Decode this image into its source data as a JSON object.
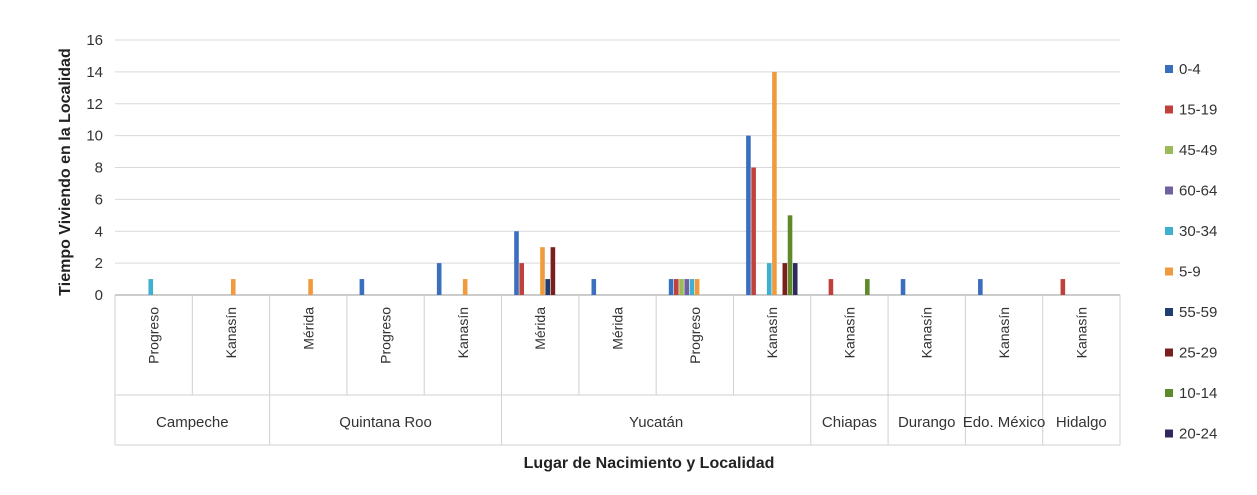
{
  "chart_data": {
    "type": "bar",
    "xlabel": "Lugar de Nacimiento y Localidad",
    "ylabel": "Tiempo Viviendo en la Localidad",
    "ylim": [
      0,
      16
    ],
    "yticks": [
      0,
      2,
      4,
      6,
      8,
      10,
      12,
      14,
      16
    ],
    "grid": true,
    "legend_position": "right",
    "groups": [
      {
        "name": "Campeche",
        "count": 2
      },
      {
        "name": "Quintana Roo",
        "count": 3
      },
      {
        "name": "Yucatán",
        "count": 4
      },
      {
        "name": "Chiapas",
        "count": 1
      },
      {
        "name": "Durango",
        "count": 1
      },
      {
        "name": "Edo. México",
        "count": 1
      },
      {
        "name": "Hidalgo",
        "count": 1
      }
    ],
    "categories": [
      "Progreso",
      "Kanasín",
      "Mérida",
      "Progreso",
      "Kanasín",
      "Mérida",
      "Mérida",
      "Progreso",
      "Kanasín",
      "Kanasín",
      "Kanasín",
      "Kanasín",
      "Kanasín"
    ],
    "series": [
      {
        "name": "0-4",
        "color": "#3a6fbf",
        "values": [
          0,
          0,
          0,
          1,
          2,
          4,
          1,
          1,
          10,
          0,
          1,
          1,
          0
        ]
      },
      {
        "name": "15-19",
        "color": "#c0403c",
        "values": [
          0,
          0,
          0,
          0,
          0,
          2,
          0,
          1,
          8,
          1,
          0,
          0,
          1
        ]
      },
      {
        "name": "45-49",
        "color": "#9bbb59",
        "values": [
          0,
          0,
          0,
          0,
          0,
          0,
          0,
          1,
          0,
          0,
          0,
          0,
          0
        ]
      },
      {
        "name": "60-64",
        "color": "#7060a0",
        "values": [
          0,
          0,
          0,
          0,
          0,
          0,
          0,
          1,
          0,
          0,
          0,
          0,
          0
        ]
      },
      {
        "name": "30-34",
        "color": "#3fb0cf",
        "values": [
          1,
          0,
          0,
          0,
          0,
          0,
          0,
          1,
          2,
          0,
          0,
          0,
          0
        ]
      },
      {
        "name": "5-9",
        "color": "#f09a3e",
        "values": [
          0,
          1,
          1,
          0,
          1,
          3,
          0,
          1,
          14,
          0,
          0,
          0,
          0
        ]
      },
      {
        "name": "55-59",
        "color": "#1f3f73",
        "values": [
          0,
          0,
          0,
          0,
          0,
          1,
          0,
          0,
          0,
          0,
          0,
          0,
          0
        ]
      },
      {
        "name": "25-29",
        "color": "#7a1f1f",
        "values": [
          0,
          0,
          0,
          0,
          0,
          3,
          0,
          0,
          2,
          0,
          0,
          0,
          0
        ]
      },
      {
        "name": "10-14",
        "color": "#5f8a2a",
        "values": [
          0,
          0,
          0,
          0,
          0,
          0,
          0,
          0,
          5,
          1,
          0,
          0,
          0
        ]
      },
      {
        "name": "20-24",
        "color": "#2e2a5e",
        "values": [
          0,
          0,
          0,
          0,
          0,
          0,
          0,
          0,
          2,
          0,
          0,
          0,
          0
        ]
      }
    ]
  }
}
